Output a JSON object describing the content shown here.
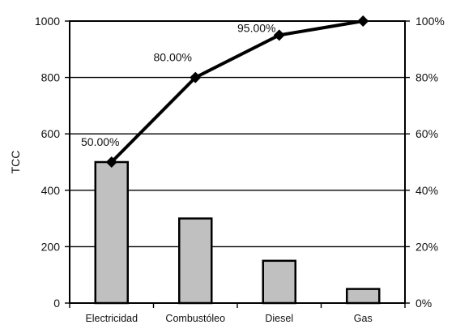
{
  "chart_data": {
    "type": "bar",
    "title": "",
    "xlabel": "",
    "ylabel": "TCC",
    "categories": [
      "Electricidad",
      "Combustóleo",
      "Diesel",
      "Gas"
    ],
    "series": [
      {
        "type": "bar",
        "values": [
          500,
          300,
          150,
          50
        ],
        "color": "#c0c0c0"
      },
      {
        "type": "line",
        "axis": "right",
        "values": [
          50,
          80,
          95,
          100
        ],
        "color": "#000000",
        "data_labels": [
          "50.00%",
          "80.00%",
          "95.00%",
          ""
        ]
      }
    ],
    "ylim": [
      0,
      1000
    ],
    "yticks": [
      "0",
      "200",
      "400",
      "600",
      "800",
      "1000"
    ],
    "y2lim": [
      0,
      100
    ],
    "y2ticks": [
      "0%",
      "20%",
      "40%",
      "60%",
      "80%",
      "100%"
    ],
    "grid": true,
    "legend": "none"
  }
}
